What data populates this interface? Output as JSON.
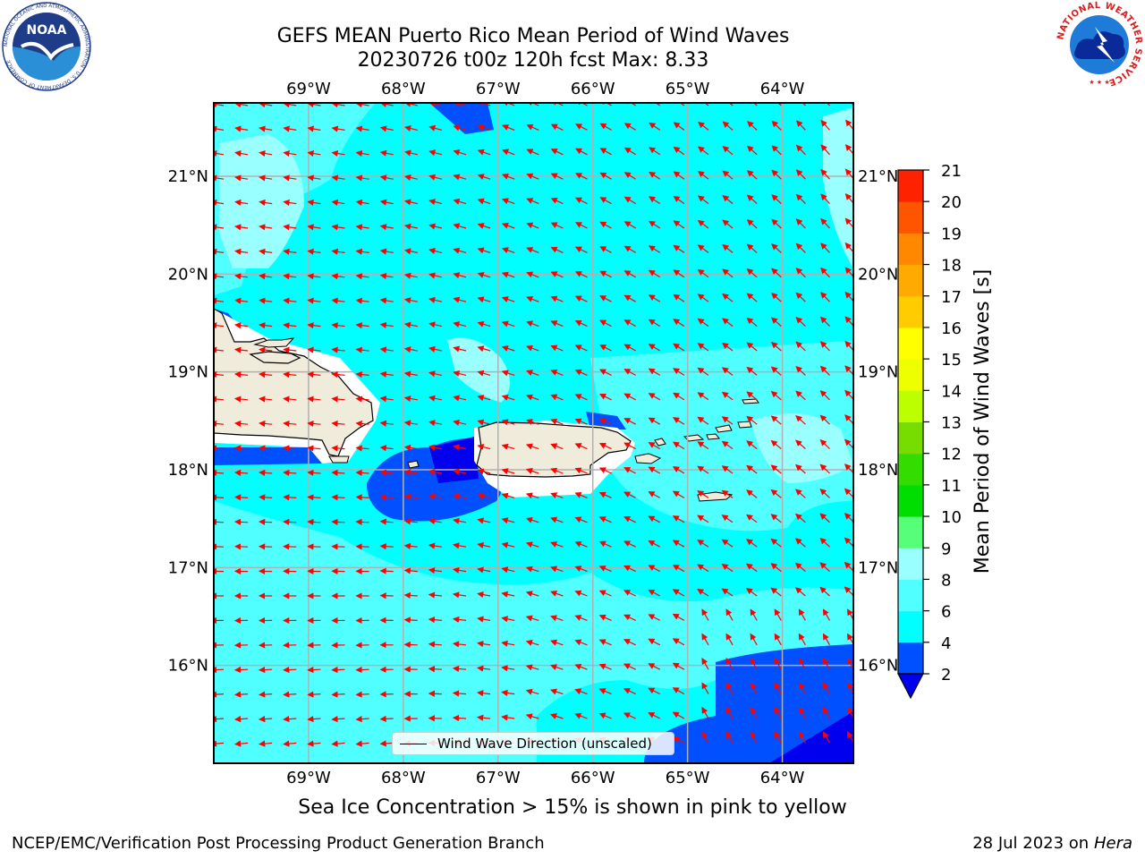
{
  "title_line1": "GEFS MEAN Puerto Rico Mean Period of Wind Waves",
  "title_line2": "20230726 t00z 120h fcst   Max: 8.33",
  "lon_labels": [
    "69°W",
    "68°W",
    "67°W",
    "66°W",
    "65°W",
    "64°W"
  ],
  "lat_labels": [
    "21°N",
    "20°N",
    "19°N",
    "18°N",
    "17°N",
    "16°N"
  ],
  "map": {
    "lon_range": [
      -70.0,
      -63.25
    ],
    "lat_range": [
      15.0,
      21.75
    ],
    "ocean_color": "#00ffff",
    "land_color": "#efecdc",
    "arrow_color": "#ff0000",
    "grid_color": "#b0b0b0"
  },
  "colorbar": {
    "title": "Mean Period of Wind Waves [s]",
    "tick_labels": [
      "2",
      "4",
      "6",
      "8",
      "9",
      "10",
      "11",
      "12",
      "13",
      "14",
      "15",
      "16",
      "17",
      "18",
      "19",
      "20",
      "21"
    ],
    "colors": [
      "#0050ff",
      "#00ffff",
      "#50ffff",
      "#99ffff",
      "#55ff77",
      "#00dd00",
      "#33dd00",
      "#77dd00",
      "#bbff00",
      "#eeff00",
      "#ffff00",
      "#ffcc00",
      "#ffaa00",
      "#ff8800",
      "#ff5500",
      "#ff2200"
    ],
    "under_color": "#0000ee"
  },
  "legend_label": "Wind Wave Direction (unscaled)",
  "subcaption": "Sea Ice Concentration > 15% is shown in pink to yellow",
  "footer_left": "NCEP/EMC/Verification Post Processing Product Generation Branch",
  "footer_date": "28 Jul 2023 on",
  "footer_machine": "Hera",
  "logos": {
    "noaa_text": "NOAA",
    "noaa_ring_text": "NATIONAL OCEANIC AND ATMOSPHERIC ADMINISTRATION · U.S. DEPARTMENT OF COMMERCE",
    "nws_ring_text": "NATIONAL WEATHER SERVICE"
  }
}
